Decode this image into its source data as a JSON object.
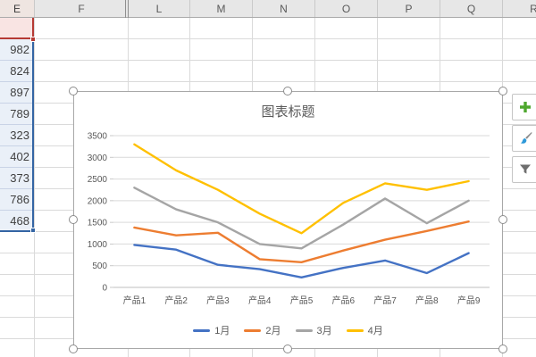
{
  "spreadsheet": {
    "column_headers": [
      "E",
      "F",
      "L",
      "M",
      "N",
      "O",
      "P",
      "Q",
      "R"
    ],
    "selected_column": "E",
    "selection_values": [
      "982",
      "824",
      "897",
      "789",
      "323",
      "402",
      "373",
      "786",
      "468"
    ]
  },
  "chart_tools": {
    "buttons": [
      {
        "name": "chart-elements-button",
        "icon": "plus-icon",
        "color": "#4EA72E"
      },
      {
        "name": "chart-styles-button",
        "icon": "brush-icon",
        "color": "#2E99D9"
      },
      {
        "name": "chart-filters-button",
        "icon": "funnel-icon",
        "color": "#6E6E6E"
      }
    ]
  },
  "chart_data": {
    "type": "line",
    "title": "图表标题",
    "categories": [
      "产品1",
      "产品2",
      "产品3",
      "产品4",
      "产品5",
      "产品6",
      "产品7",
      "产品8",
      "产品9"
    ],
    "series": [
      {
        "name": "1月",
        "color": "#4472C4",
        "values": [
          980,
          870,
          520,
          420,
          230,
          450,
          620,
          330,
          790
        ]
      },
      {
        "name": "2月",
        "color": "#ED7D31",
        "values": [
          1380,
          1200,
          1260,
          650,
          580,
          850,
          1100,
          1300,
          1520
        ]
      },
      {
        "name": "3月",
        "color": "#A5A5A5",
        "values": [
          2300,
          1800,
          1500,
          1000,
          900,
          1450,
          2050,
          1480,
          2000
        ]
      },
      {
        "name": "4月",
        "color": "#FFC000",
        "values": [
          3300,
          2700,
          2250,
          1700,
          1250,
          1950,
          2400,
          2250,
          2450
        ]
      }
    ],
    "ylim": [
      0,
      3500
    ],
    "ytick_interval": 500,
    "ytick_labels": [
      "0",
      "500",
      "1000",
      "1500",
      "2000",
      "2500",
      "3000",
      "3500"
    ],
    "xlabel": "",
    "ylabel": "",
    "grid": true,
    "legend_position": "bottom",
    "gridline_color": "#D9D9D9",
    "axis_line_color": "#BFBFBF"
  }
}
